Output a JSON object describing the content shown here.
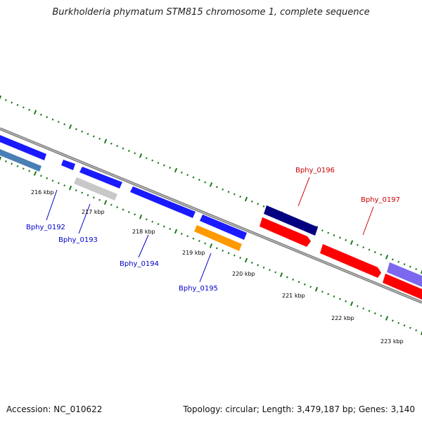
{
  "title": "Burkholderia phymatum STM815 chromosome 1, complete sequence",
  "footer": {
    "accession": "Accession: NC_010622",
    "stats": "Topology: circular; Length: 3,479,187 bp; Genes: 3,140"
  },
  "ticks": [
    "216 kbp",
    "217 kbp",
    "218 kbp",
    "219 kbp",
    "220 kbp",
    "221 kbp",
    "222 kbp",
    "223 kbp"
  ],
  "genes": [
    {
      "id": "Bphy_0192",
      "label": "Bphy_0192",
      "color": "#0000cc"
    },
    {
      "id": "Bphy_0193",
      "label": "Bphy_0193",
      "color": "#0000cc"
    },
    {
      "id": "Bphy_0194",
      "label": "Bphy_0194",
      "color": "#0000cc"
    },
    {
      "id": "Bphy_0195",
      "label": "Bphy_0195",
      "color": "#0000cc"
    },
    {
      "id": "Bphy_0196",
      "label": "Bphy_0196",
      "color": "#cc0000"
    },
    {
      "id": "Bphy_0197",
      "label": "Bphy_0197",
      "color": "#cc0000"
    }
  ],
  "feature_colors": {
    "blue": "#1a1aff",
    "steel_blue": "#4a7fb5",
    "gray": "#c8c8c8",
    "orange": "#ff9900",
    "navy": "#000080",
    "red": "#ff0000",
    "purple": "#7b68ee",
    "backbone": "#7a7a7a",
    "dots": "#1a7a1a"
  }
}
